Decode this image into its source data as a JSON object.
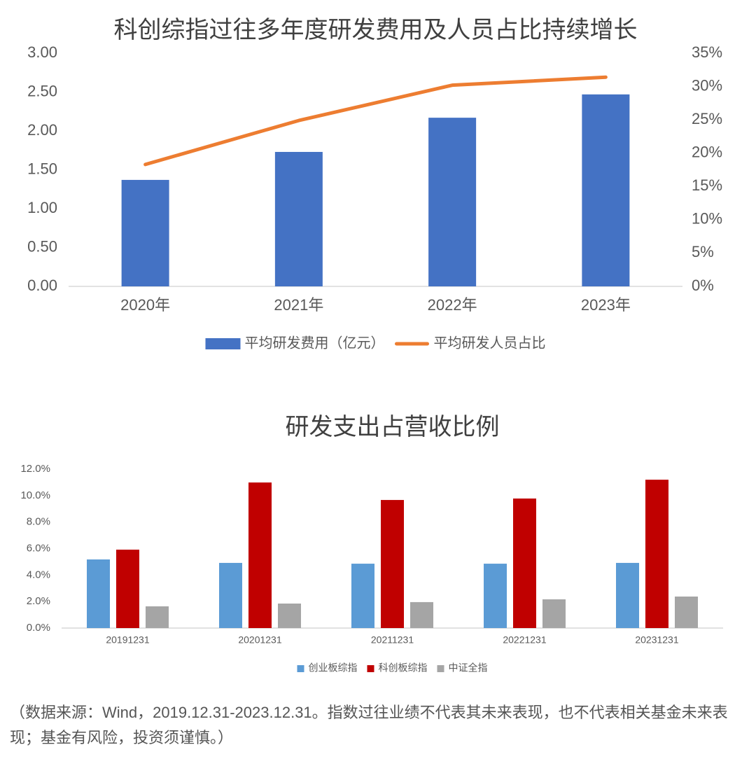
{
  "chart_data": [
    {
      "type": "bar",
      "title": "科创综指过往多年度研发费用及人员占比持续增长",
      "categories": [
        "2020年",
        "2021年",
        "2022年",
        "2023年"
      ],
      "series": [
        {
          "name": "平均研发费用（亿元）",
          "color": "#4472c4",
          "values": [
            1.37,
            1.73,
            2.17,
            2.47
          ]
        },
        {
          "name": "平均研发人员占比",
          "color": "#ed7d31",
          "type": "line",
          "axis": "y2",
          "values": [
            18.3,
            24.9,
            30.2,
            31.4
          ]
        }
      ],
      "ylim": [
        0,
        3
      ],
      "yticks": [
        {
          "value": 0,
          "label": "0.00"
        },
        {
          "value": 0.5,
          "label": "0.50"
        },
        {
          "value": 1,
          "label": "1.00"
        },
        {
          "value": 1.5,
          "label": "1.50"
        },
        {
          "value": 2,
          "label": "2.00"
        },
        {
          "value": 2.5,
          "label": "2.50"
        },
        {
          "value": 3,
          "label": "3.00"
        }
      ],
      "y2lim": [
        0,
        35
      ],
      "y2ticks": [
        {
          "value": 0,
          "label": "0%"
        },
        {
          "value": 5,
          "label": "5%"
        },
        {
          "value": 10,
          "label": "10%"
        },
        {
          "value": 15,
          "label": "15%"
        },
        {
          "value": 20,
          "label": "20%"
        },
        {
          "value": 25,
          "label": "25%"
        },
        {
          "value": 30,
          "label": "30%"
        },
        {
          "value": 35,
          "label": "35%"
        }
      ],
      "grid": false
    },
    {
      "type": "bar",
      "title": "研发支出占营收比例",
      "categories": [
        "20191231",
        "20201231",
        "20211231",
        "20221231",
        "20231231"
      ],
      "series": [
        {
          "name": "创业板综指",
          "color": "#5b9bd5",
          "values": [
            5.18,
            4.92,
            4.86,
            4.86,
            4.92
          ]
        },
        {
          "name": "科创板综指",
          "color": "#c00000",
          "values": [
            5.92,
            10.99,
            9.67,
            9.78,
            11.2
          ]
        },
        {
          "name": "中证全指",
          "color": "#a5a5a5",
          "values": [
            1.64,
            1.85,
            1.96,
            2.17,
            2.38
          ]
        }
      ],
      "ylim": [
        0,
        12
      ],
      "yticks": [
        {
          "value": 0,
          "label": "0.0%"
        },
        {
          "value": 2,
          "label": "2.0%"
        },
        {
          "value": 4,
          "label": "4.0%"
        },
        {
          "value": 6,
          "label": "6.0%"
        },
        {
          "value": 8,
          "label": "8.0%"
        },
        {
          "value": 10,
          "label": "10.0%"
        },
        {
          "value": 12,
          "label": "12.0%"
        }
      ],
      "grid": false
    }
  ],
  "footnote": "（数据来源：Wind，2019.12.31-2023.12.31。指数过往业绩不代表其未来表现，也不代表相关基金未来表现；基金有风险，投资须谨慎。）"
}
